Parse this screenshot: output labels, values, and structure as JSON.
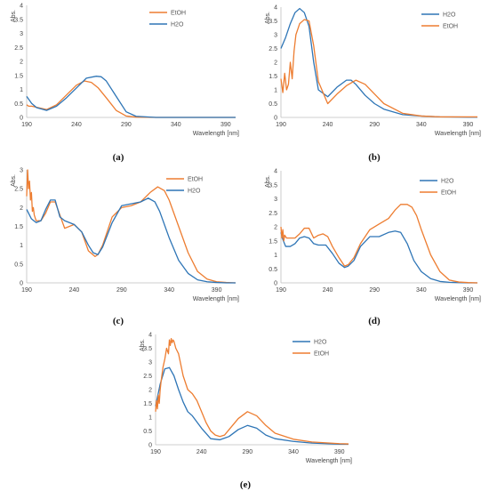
{
  "chart_data": [
    {
      "type": "line",
      "panel_label": "(a)",
      "ylabel": "Abs.",
      "xlabel": "Wavelength [nm]",
      "xlim": [
        190,
        400
      ],
      "ylim": [
        0,
        4
      ],
      "xticks": [
        190,
        240,
        290,
        340,
        390
      ],
      "yticks": [
        0,
        0.5,
        1,
        1.5,
        2,
        2.5,
        3,
        3.5,
        4
      ],
      "ytick_labels": [
        "0",
        "0.5",
        "1",
        "1.5",
        "2",
        "2.5",
        "3",
        "3.5",
        "4"
      ],
      "grid": false,
      "legend_position": "top-right",
      "series": [
        {
          "name": "EtOH",
          "color": "#ed7d31",
          "x": [
            190,
            192,
            195,
            200,
            210,
            220,
            230,
            240,
            248,
            255,
            262,
            270,
            280,
            290,
            300,
            320,
            340,
            360,
            390,
            400
          ],
          "y": [
            0.45,
            0.4,
            0.4,
            0.36,
            0.28,
            0.45,
            0.8,
            1.15,
            1.3,
            1.25,
            1.05,
            0.7,
            0.25,
            0.05,
            0.01,
            0,
            0,
            0,
            0,
            0
          ]
        },
        {
          "name": "H2O",
          "color": "#2e75b6",
          "x": [
            190,
            195,
            200,
            210,
            220,
            230,
            240,
            250,
            260,
            265,
            270,
            280,
            290,
            300,
            320,
            340,
            360,
            390,
            400
          ],
          "y": [
            0.75,
            0.5,
            0.35,
            0.25,
            0.4,
            0.7,
            1.05,
            1.4,
            1.47,
            1.45,
            1.3,
            0.75,
            0.2,
            0.04,
            0,
            0,
            0,
            0,
            0
          ]
        }
      ]
    },
    {
      "type": "line",
      "panel_label": "(b)",
      "ylabel": "Abs.",
      "xlabel": "Wavelength [nm]",
      "xlim": [
        190,
        400
      ],
      "ylim": [
        0,
        4
      ],
      "xticks": [
        190,
        240,
        290,
        340,
        390
      ],
      "yticks": [
        0,
        0.5,
        1,
        1.5,
        2,
        2.5,
        3,
        3.5,
        4
      ],
      "ytick_labels": [
        "0",
        "0.5",
        "1",
        "1.5",
        "2",
        "2.5",
        "3",
        "3.5",
        "4"
      ],
      "grid": false,
      "legend_position": "top-right",
      "series": [
        {
          "name": "H2O",
          "color": "#2e75b6",
          "x": [
            190,
            195,
            200,
            205,
            210,
            215,
            220,
            225,
            230,
            240,
            250,
            260,
            265,
            270,
            280,
            290,
            300,
            320,
            340,
            360,
            390,
            400
          ],
          "y": [
            2.5,
            2.9,
            3.4,
            3.8,
            3.95,
            3.8,
            3.3,
            2.0,
            1.0,
            0.75,
            1.1,
            1.35,
            1.35,
            1.2,
            0.8,
            0.5,
            0.3,
            0.1,
            0.05,
            0.02,
            0.01,
            0.01
          ]
        },
        {
          "name": "EtOH",
          "color": "#ed7d31",
          "x": [
            190,
            192,
            194,
            196,
            198,
            200,
            202,
            204,
            206,
            208,
            210,
            215,
            220,
            225,
            230,
            240,
            250,
            260,
            270,
            280,
            290,
            300,
            320,
            340,
            360,
            390,
            400
          ],
          "y": [
            1.4,
            0.9,
            1.6,
            1.0,
            1.2,
            2.0,
            1.4,
            2.4,
            3.0,
            3.2,
            3.4,
            3.55,
            3.5,
            2.6,
            1.3,
            0.5,
            0.85,
            1.15,
            1.35,
            1.2,
            0.85,
            0.5,
            0.15,
            0.05,
            0.02,
            0.02,
            0.02
          ]
        }
      ]
    },
    {
      "type": "line",
      "panel_label": "(c)",
      "ylabel": "Abs.",
      "xlabel": "Wavelength [nm]",
      "xlim": [
        190,
        410
      ],
      "ylim": [
        0,
        3
      ],
      "xticks": [
        190,
        240,
        290,
        340,
        390
      ],
      "yticks": [
        0,
        0.5,
        1,
        1.5,
        2,
        2.5,
        3
      ],
      "ytick_labels": [
        "0",
        "0.5",
        "1",
        "1.5",
        "2",
        "2.5",
        "3"
      ],
      "grid": false,
      "legend_position": "top-right",
      "series": [
        {
          "name": "EtOH",
          "color": "#ed7d31",
          "x": [
            190,
            191,
            192,
            193,
            194,
            195,
            196,
            197,
            198,
            200,
            205,
            210,
            215,
            220,
            225,
            230,
            240,
            248,
            255,
            262,
            265,
            270,
            280,
            290,
            300,
            310,
            320,
            328,
            335,
            340,
            350,
            360,
            370,
            380,
            390,
            400,
            410
          ],
          "y": [
            2.3,
            3.0,
            2.5,
            2.7,
            2.2,
            2.4,
            1.9,
            2.0,
            1.8,
            1.65,
            1.65,
            1.85,
            2.15,
            2.15,
            1.8,
            1.45,
            1.55,
            1.35,
            0.85,
            0.7,
            0.75,
            1.0,
            1.75,
            2.0,
            2.05,
            2.15,
            2.4,
            2.55,
            2.45,
            2.2,
            1.5,
            0.8,
            0.3,
            0.1,
            0.03,
            0.01,
            0
          ]
        },
        {
          "name": "H2O",
          "color": "#2e75b6",
          "x": [
            190,
            192,
            195,
            200,
            205,
            210,
            215,
            220,
            225,
            230,
            240,
            248,
            255,
            260,
            265,
            270,
            280,
            290,
            300,
            310,
            318,
            325,
            330,
            340,
            350,
            360,
            370,
            380,
            390,
            400,
            410
          ],
          "y": [
            1.95,
            1.85,
            1.7,
            1.6,
            1.65,
            1.95,
            2.2,
            2.2,
            1.75,
            1.65,
            1.55,
            1.35,
            1.0,
            0.8,
            0.75,
            0.95,
            1.6,
            2.05,
            2.1,
            2.15,
            2.25,
            2.15,
            1.9,
            1.2,
            0.6,
            0.25,
            0.08,
            0.03,
            0.01,
            0,
            0
          ]
        }
      ]
    },
    {
      "type": "line",
      "panel_label": "(d)",
      "ylabel": "Abs.",
      "xlabel": "Wavelength [nm]",
      "xlim": [
        190,
        400
      ],
      "ylim": [
        0,
        4
      ],
      "xticks": [
        190,
        240,
        290,
        340,
        390
      ],
      "yticks": [
        0,
        0.5,
        1,
        1.5,
        2,
        2.5,
        3,
        3.5,
        4
      ],
      "ytick_labels": [
        "0",
        "0.5",
        "1",
        "1.5",
        "2",
        "2.5",
        "3",
        "3.5",
        "4"
      ],
      "grid": false,
      "legend_position": "top-right",
      "series": [
        {
          "name": "H2O",
          "color": "#2e75b6",
          "x": [
            190,
            192,
            195,
            200,
            205,
            210,
            215,
            220,
            225,
            230,
            238,
            245,
            252,
            258,
            262,
            268,
            275,
            285,
            295,
            305,
            312,
            318,
            325,
            332,
            340,
            350,
            360,
            370,
            380,
            390,
            400
          ],
          "y": [
            1.8,
            1.55,
            1.3,
            1.3,
            1.4,
            1.6,
            1.65,
            1.6,
            1.4,
            1.35,
            1.35,
            1.05,
            0.7,
            0.55,
            0.6,
            0.8,
            1.3,
            1.65,
            1.65,
            1.8,
            1.85,
            1.8,
            1.4,
            0.8,
            0.4,
            0.15,
            0.05,
            0.02,
            0.01,
            0,
            0
          ]
        },
        {
          "name": "EtOH",
          "color": "#ed7d31",
          "x": [
            190,
            191,
            192,
            193,
            194,
            196,
            198,
            200,
            205,
            210,
            215,
            220,
            225,
            230,
            235,
            240,
            245,
            252,
            258,
            262,
            268,
            275,
            285,
            295,
            305,
            312,
            318,
            325,
            330,
            335,
            340,
            350,
            360,
            370,
            380,
            390,
            400
          ],
          "y": [
            2.0,
            1.6,
            1.9,
            1.5,
            1.7,
            1.6,
            1.6,
            1.6,
            1.6,
            1.75,
            1.95,
            1.95,
            1.6,
            1.7,
            1.75,
            1.65,
            1.3,
            0.9,
            0.6,
            0.65,
            0.9,
            1.4,
            1.9,
            2.1,
            2.3,
            2.6,
            2.8,
            2.8,
            2.7,
            2.4,
            1.9,
            1.0,
            0.4,
            0.1,
            0.03,
            0.01,
            0
          ]
        }
      ]
    },
    {
      "type": "line",
      "panel_label": "(e)",
      "ylabel": "Abs.",
      "xlabel": "Wavelength [nm]",
      "xlim": [
        190,
        400
      ],
      "ylim": [
        0,
        4
      ],
      "xticks": [
        190,
        240,
        290,
        340,
        390
      ],
      "yticks": [
        0,
        0.5,
        1,
        1.5,
        2,
        2.5,
        3,
        3.5,
        4
      ],
      "ytick_labels": [
        "0",
        "0.5",
        "1",
        "1.5",
        "2",
        "2.5",
        "3",
        "3.5",
        "4"
      ],
      "grid": false,
      "legend_position": "top-right",
      "series": [
        {
          "name": "H2O",
          "color": "#2e75b6",
          "x": [
            190,
            195,
            200,
            205,
            210,
            215,
            220,
            225,
            230,
            240,
            250,
            260,
            270,
            280,
            290,
            300,
            310,
            320,
            340,
            360,
            390,
            400
          ],
          "y": [
            1.4,
            2.2,
            2.75,
            2.8,
            2.5,
            2.0,
            1.55,
            1.2,
            1.05,
            0.6,
            0.22,
            0.18,
            0.3,
            0.55,
            0.7,
            0.6,
            0.35,
            0.22,
            0.12,
            0.06,
            0.02,
            0.02
          ]
        },
        {
          "name": "EtOH",
          "color": "#ed7d31",
          "x": [
            190,
            191,
            192,
            193,
            194,
            195,
            196,
            198,
            200,
            202,
            204,
            205,
            206,
            207,
            208,
            209,
            210,
            212,
            215,
            220,
            225,
            230,
            235,
            240,
            245,
            250,
            255,
            260,
            265,
            270,
            280,
            290,
            300,
            310,
            320,
            340,
            360,
            390,
            400
          ],
          "y": [
            1.2,
            1.6,
            1.3,
            1.8,
            1.5,
            2.0,
            2.3,
            2.8,
            3.1,
            3.5,
            3.3,
            3.8,
            3.6,
            3.85,
            3.7,
            3.8,
            3.75,
            3.5,
            3.3,
            2.5,
            2.0,
            1.85,
            1.6,
            1.2,
            0.8,
            0.5,
            0.35,
            0.3,
            0.35,
            0.55,
            0.95,
            1.2,
            1.05,
            0.7,
            0.42,
            0.2,
            0.1,
            0.04,
            0.03
          ]
        }
      ]
    }
  ]
}
